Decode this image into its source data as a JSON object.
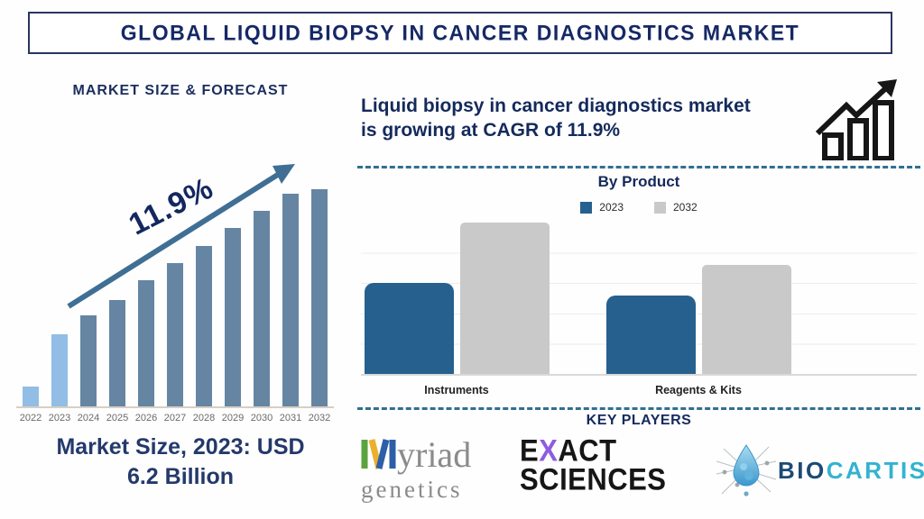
{
  "colors": {
    "navy_text": "#15295c",
    "title_border": "#2a3560",
    "forecast_bar": "#6585a3",
    "forecast_bar_highlight": "#92bde4",
    "arrow": "#3f6f94",
    "divider_dash": "#31708f",
    "bar_2023": "#26608f",
    "bar_2032": "#c9c9c9",
    "myriad_green": "#5ba33f",
    "myriad_yellow": "#eab02e",
    "myriad_blue": "#2d5fa8",
    "exact_purple": "#8f5ce0",
    "biocartis_teal": "#33b3cf",
    "biocartis_navy": "#1c4a73"
  },
  "header": {
    "title": "GLOBAL LIQUID BIOPSY IN CANCER DIAGNOSTICS MARKET"
  },
  "left_panel": {
    "heading": "MARKET SIZE & FORECAST",
    "cagr_annotation": "11.9%",
    "market_size_line1": "Market Size, 2023: USD",
    "market_size_line2": "6.2 Billion"
  },
  "right_panel": {
    "statement_line1": "Liquid biopsy in cancer diagnostics market",
    "statement_line2": "is growing at CAGR of 11.9%",
    "by_product_title": "By Product",
    "key_players_heading": "KEY PLAYERS",
    "players": [
      {
        "name": "Myriad Genetics",
        "line1": "yriad",
        "line2": "genetics"
      },
      {
        "name": "Exact Sciences",
        "line1_parts": [
          "E",
          "X",
          "ACT"
        ],
        "line2": "SCIENCES"
      },
      {
        "name": "Biocartis",
        "part1": "BIO",
        "part2": "CARTIS"
      }
    ]
  },
  "chart_data": [
    {
      "type": "bar",
      "title": "MARKET SIZE & FORECAST",
      "categories": [
        "2022",
        "2023",
        "2024",
        "2025",
        "2026",
        "2027",
        "2028",
        "2029",
        "2030",
        "2031",
        "2032"
      ],
      "values_relative_pct": [
        9,
        33,
        42,
        49,
        58,
        66,
        74,
        82,
        90,
        98,
        100
      ],
      "highlight_indices": [
        0,
        1
      ],
      "bar_color": "#6585a3",
      "highlight_color": "#92bde4",
      "annotation": "11.9%",
      "note": "Market Size, 2023: USD 6.2 Billion",
      "ylabel": "",
      "xlabel": "",
      "y_axis_shown": false,
      "units": "relative bar heights (percent of tallest bar); no y-axis values shown"
    },
    {
      "type": "bar",
      "title": "By Product",
      "categories": [
        "Instruments",
        "Reagents & Kits"
      ],
      "series": [
        {
          "name": "2023",
          "color": "#26608f",
          "values": [
            3.0,
            2.6
          ]
        },
        {
          "name": "2032",
          "color": "#c9c9c9",
          "values": [
            5.0,
            3.6
          ]
        }
      ],
      "ylim": [
        0,
        5
      ],
      "gridlines": true,
      "legend_position": "top",
      "units": "relative units estimated from gridlines; no y-axis values shown"
    }
  ]
}
